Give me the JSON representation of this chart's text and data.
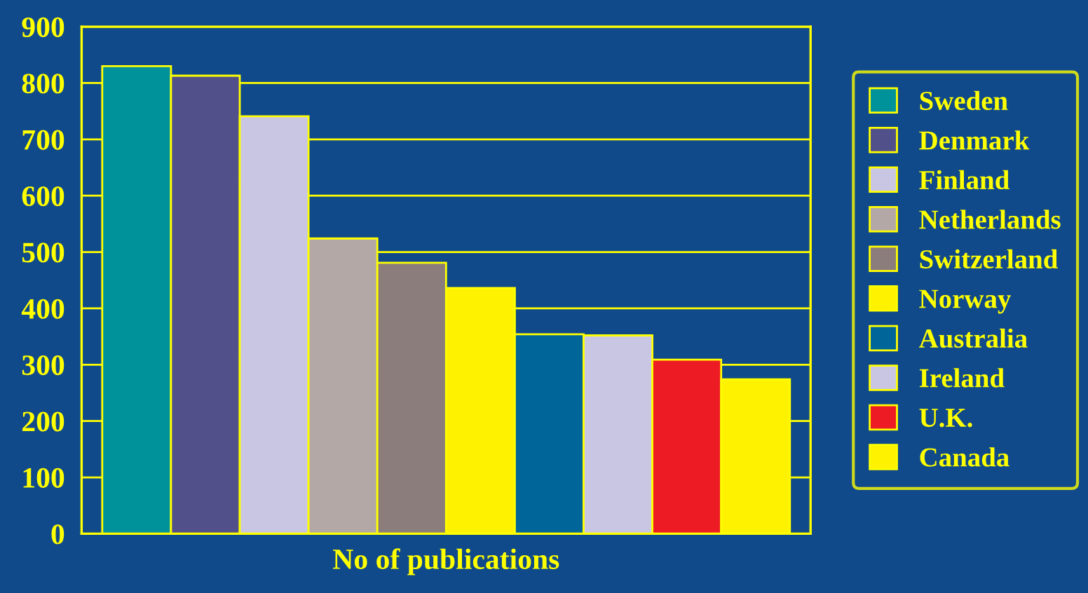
{
  "chart_data": {
    "type": "bar",
    "xlabel": "No of publications",
    "categories": [
      null,
      null,
      null,
      null,
      null,
      null,
      null,
      null,
      null,
      null
    ],
    "series": [
      {
        "name": "Sweden",
        "color": "#00929a",
        "values": [
          830,
          null,
          null,
          null,
          null,
          null,
          null,
          null,
          null,
          null
        ]
      },
      {
        "name": "Denmark",
        "color": "#52508a",
        "values": [
          null,
          813,
          null,
          null,
          null,
          null,
          null,
          null,
          null,
          null
        ]
      },
      {
        "name": "Finland",
        "color": "#c8c6e2",
        "values": [
          null,
          null,
          741,
          null,
          null,
          null,
          null,
          null,
          null,
          null
        ]
      },
      {
        "name": "Netherlands",
        "color": "#b3a8a6",
        "values": [
          null,
          null,
          null,
          524,
          null,
          null,
          null,
          null,
          null,
          null
        ]
      },
      {
        "name": "Switzerland",
        "color": "#8b7d7b",
        "values": [
          null,
          null,
          null,
          null,
          481,
          null,
          null,
          null,
          null,
          null
        ]
      },
      {
        "name": "Norway",
        "color": "#fff200",
        "values": [
          null,
          null,
          null,
          null,
          null,
          436,
          null,
          null,
          null,
          null
        ]
      },
      {
        "name": "Australia",
        "color": "#006699",
        "values": [
          null,
          null,
          null,
          null,
          null,
          null,
          354,
          null,
          null,
          null
        ]
      },
      {
        "name": "Ireland",
        "color": "#c8c6e2",
        "values": [
          null,
          null,
          null,
          null,
          null,
          null,
          null,
          352,
          null,
          null
        ]
      },
      {
        "name": "U.K.",
        "color": "#ed1c24",
        "values": [
          null,
          null,
          null,
          null,
          null,
          null,
          null,
          null,
          309,
          null
        ]
      },
      {
        "name": "Canada",
        "color": "#fff200",
        "values": [
          null,
          null,
          null,
          null,
          null,
          null,
          null,
          null,
          null,
          274
        ]
      }
    ],
    "ylim": [
      0,
      900
    ],
    "yticks": [
      0,
      100,
      200,
      300,
      400,
      500,
      600,
      700,
      800,
      900
    ],
    "grid": "y",
    "legend": "right"
  }
}
